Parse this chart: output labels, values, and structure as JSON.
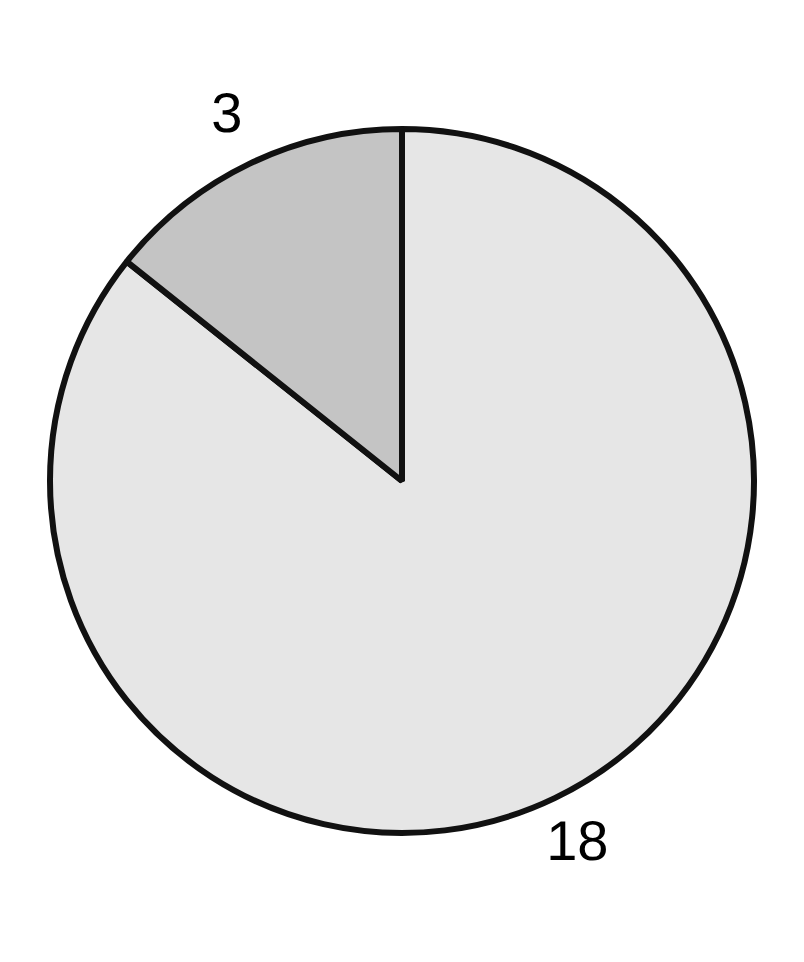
{
  "chart_data": {
    "type": "pie",
    "categories": [
      null,
      null
    ],
    "values": [
      18,
      3
    ],
    "colors": [
      "#e6e6e6",
      "#c4c4c4"
    ],
    "data_labels": true,
    "legend": false
  }
}
